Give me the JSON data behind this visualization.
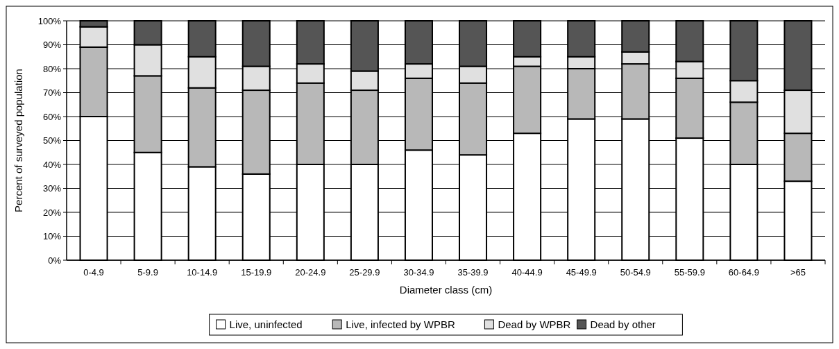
{
  "chart_data": {
    "type": "bar",
    "stacked": true,
    "xlabel": "Diameter class (cm)",
    "ylabel": "Percent of surveyed population",
    "categories": [
      "0-4.9",
      "5-9.9",
      "10-14.9",
      "15-19.9",
      "20-24.9",
      "25-29.9",
      "30-34.9",
      "35-39.9",
      "40-44.9",
      "45-49.9",
      "50-54.9",
      "55-59.9",
      "60-64.9",
      ">65"
    ],
    "series": [
      {
        "name": "Live, uninfected",
        "color": "#ffffff",
        "values": [
          60,
          45,
          39,
          36,
          40,
          40,
          46,
          44,
          53,
          59,
          59,
          51,
          40,
          33
        ]
      },
      {
        "name": "Live, infected by WPBR",
        "color": "#b8b8b8",
        "values": [
          29,
          32,
          33,
          35,
          34,
          31,
          30,
          30,
          28,
          21,
          23,
          25,
          26,
          20
        ]
      },
      {
        "name": "Dead by WPBR",
        "color": "#e0e0e0",
        "values": [
          8.5,
          13,
          13,
          10,
          8,
          8,
          6,
          7,
          4,
          5,
          5,
          7,
          9,
          18
        ]
      },
      {
        "name": "Dead by other",
        "color": "#555555",
        "values": [
          2.5,
          10,
          15,
          19,
          18,
          21,
          18,
          19,
          15,
          15,
          13,
          17,
          25,
          29
        ]
      }
    ],
    "ylim": [
      0,
      100
    ],
    "yticks": [
      {
        "value": 0,
        "label": "0%"
      },
      {
        "value": 10,
        "label": "10%"
      },
      {
        "value": 20,
        "label": "20%"
      },
      {
        "value": 30,
        "label": "30%"
      },
      {
        "value": 40,
        "label": "40%"
      },
      {
        "value": 50,
        "label": "50%"
      },
      {
        "value": 60,
        "label": "60%"
      },
      {
        "value": 70,
        "label": "70%"
      },
      {
        "value": 80,
        "label": "80%"
      },
      {
        "value": 90,
        "label": "90%"
      },
      {
        "value": 100,
        "label": "100%"
      }
    ],
    "grid": "y",
    "legend": "bottom"
  }
}
